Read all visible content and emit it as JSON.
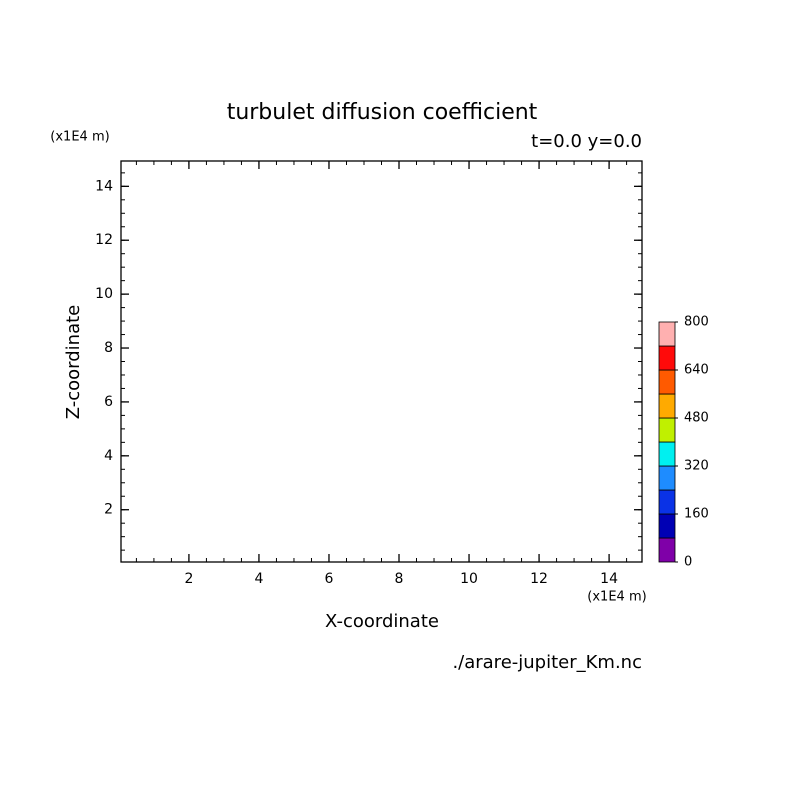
{
  "chart_data": {
    "type": "contour",
    "title": "turbulet diffusion coefficient",
    "subtitle": "t=0.0 y=0.0",
    "x_label": "X-coordinate",
    "y_label": "Z-coordinate",
    "x_unit": "(x1E4 m)",
    "y_unit": "(x1E4 m)",
    "source": "./arare-jupiter_Km.nc",
    "xlim": [
      0.06,
      14.94
    ],
    "ylim": [
      0.06,
      14.94
    ],
    "xticks": [
      2,
      4,
      6,
      8,
      10,
      12,
      14
    ],
    "yticks": [
      2,
      4,
      6,
      8,
      10,
      12,
      14
    ],
    "colorbar": {
      "levels": [
        0,
        80,
        160,
        240,
        320,
        400,
        480,
        560,
        640,
        720,
        800
      ],
      "colors": [
        "#7f00a8",
        "#0000b4",
        "#0a32e6",
        "#1e8cff",
        "#00f0f0",
        "#c0f000",
        "#ffaa00",
        "#ff5a00",
        "#ff0a0a",
        "#ffb0b0"
      ],
      "ticks": [
        0,
        160,
        320,
        480,
        640,
        800
      ]
    }
  }
}
